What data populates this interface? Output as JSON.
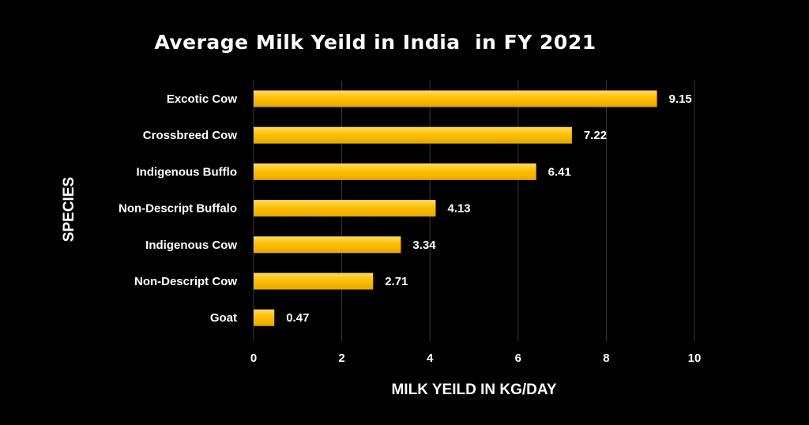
{
  "chart_data": {
    "type": "bar",
    "orientation": "horizontal",
    "title": "Average Milk Yeild in India  in FY 2021",
    "xlabel": "MILK YEILD IN KG/DAY",
    "ylabel": "SPECIES",
    "categories": [
      "Excotic Cow",
      "Crossbreed Cow",
      "Indigenous Bufflo",
      "Non-Descript Buffalo",
      "Indigenous Cow",
      "Non-Descript Cow",
      "Goat"
    ],
    "values": [
      9.15,
      7.22,
      6.41,
      4.13,
      3.34,
      2.71,
      0.47
    ],
    "value_labels": [
      "9.15",
      "7.22",
      "6.41",
      "4.13",
      "3.34",
      "2.71",
      "0.47"
    ],
    "xlim": [
      0,
      10
    ],
    "xticks": [
      0,
      2,
      4,
      6,
      8,
      10
    ],
    "grid": true,
    "legend": "none",
    "colors": {
      "background": "#000000",
      "bar_top": "#ffd966",
      "bar_mid": "#ffc000",
      "bar_bottom": "#e6a800",
      "text": "#ffffff",
      "grid": "#3a3a3a"
    }
  }
}
